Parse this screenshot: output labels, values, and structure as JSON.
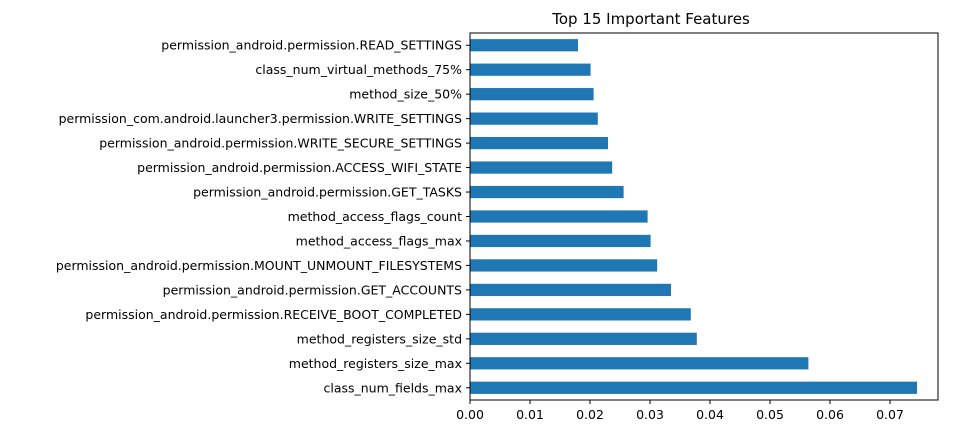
{
  "chart_data": {
    "type": "bar",
    "orientation": "horizontal",
    "title": "Top 15 Important Features",
    "xlabel": "",
    "ylabel": "",
    "xlim": [
      0,
      0.078
    ],
    "x_ticks": [
      "0.00",
      "0.01",
      "0.02",
      "0.03",
      "0.04",
      "0.05",
      "0.06",
      "0.07"
    ],
    "x_tick_values": [
      0,
      0.01,
      0.02,
      0.03,
      0.04,
      0.05,
      0.06,
      0.07
    ],
    "grid": false,
    "bar_color": "#1f77b4",
    "categories": [
      "permission_android.permission.READ_SETTINGS",
      "class_num_virtual_methods_75%",
      "method_size_50%",
      "permission_com.android.launcher3.permission.WRITE_SETTINGS",
      "permission_android.permission.WRITE_SECURE_SETTINGS",
      "permission_android.permission.ACCESS_WIFI_STATE",
      "permission_android.permission.GET_TASKS",
      "method_access_flags_count",
      "method_access_flags_max",
      "permission_android.permission.MOUNT_UNMOUNT_FILESYSTEMS",
      "permission_android.permission.GET_ACCOUNTS",
      "permission_android.permission.RECEIVE_BOOT_COMPLETED",
      "method_registers_size_std",
      "method_registers_size_max",
      "class_num_fields_max"
    ],
    "values": [
      0.018,
      0.0201,
      0.0206,
      0.0213,
      0.023,
      0.0237,
      0.0256,
      0.0296,
      0.0301,
      0.0312,
      0.0335,
      0.0368,
      0.0378,
      0.0564,
      0.0745
    ]
  }
}
